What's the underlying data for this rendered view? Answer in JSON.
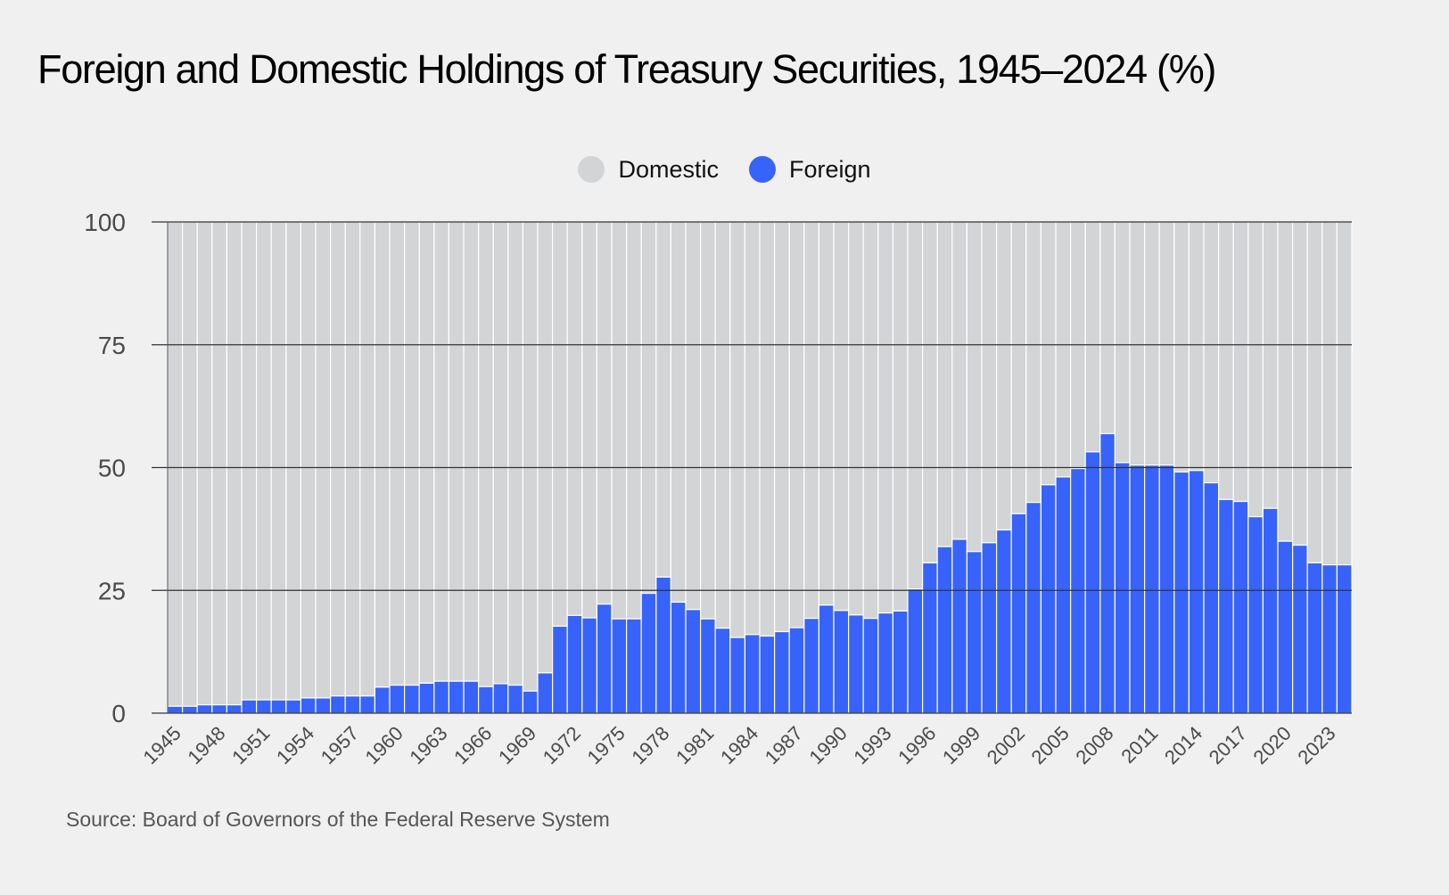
{
  "chart_data": {
    "type": "bar",
    "stacked": true,
    "title": "Foreign and Domestic Holdings of Treasury Securities, 1945–2024 (%)",
    "xlabel": "",
    "ylabel": "",
    "ylim": [
      0,
      100
    ],
    "yticks": [
      0,
      25,
      50,
      75,
      100
    ],
    "grid": true,
    "legend_position": "top-center",
    "categories": [
      1945,
      1946,
      1947,
      1948,
      1949,
      1950,
      1951,
      1952,
      1953,
      1954,
      1955,
      1956,
      1957,
      1958,
      1959,
      1960,
      1961,
      1962,
      1963,
      1964,
      1965,
      1966,
      1967,
      1968,
      1969,
      1970,
      1971,
      1972,
      1973,
      1974,
      1975,
      1976,
      1977,
      1978,
      1979,
      1980,
      1981,
      1982,
      1983,
      1984,
      1985,
      1986,
      1987,
      1988,
      1989,
      1990,
      1991,
      1992,
      1993,
      1994,
      1995,
      1996,
      1997,
      1998,
      1999,
      2000,
      2001,
      2002,
      2003,
      2004,
      2005,
      2006,
      2007,
      2008,
      2009,
      2010,
      2011,
      2012,
      2013,
      2014,
      2015,
      2016,
      2017,
      2018,
      2019,
      2020,
      2021,
      2022,
      2023,
      2024
    ],
    "tick_labels": [
      "1945",
      "1948",
      "1951",
      "1954",
      "1957",
      "1960",
      "1963",
      "1966",
      "1969",
      "1972",
      "1975",
      "1978",
      "1981",
      "1984",
      "1987",
      "1990",
      "1993",
      "1996",
      "1999",
      "2002",
      "2005",
      "2008",
      "2011",
      "2014",
      "2017",
      "2020",
      "2023"
    ],
    "series": [
      {
        "name": "Domestic",
        "color": "#d3d4d6",
        "values": [
          98.6,
          98.6,
          98.3,
          98.3,
          98.3,
          97.3,
          97.3,
          97.3,
          97.3,
          96.9,
          96.9,
          96.5,
          96.5,
          96.5,
          94.7,
          94.3,
          94.3,
          93.9,
          93.5,
          93.5,
          93.5,
          94.6,
          94.0,
          94.3,
          95.5,
          91.8,
          82.3,
          80.1,
          80.6,
          77.8,
          80.8,
          80.8,
          75.6,
          72.3,
          77.4,
          78.9,
          80.8,
          82.7,
          84.6,
          84.0,
          84.3,
          83.4,
          82.6,
          80.7,
          78.0,
          79.1,
          80.0,
          80.7,
          79.6,
          79.2,
          74.7,
          69.4,
          66.1,
          64.6,
          67.1,
          65.3,
          62.7,
          59.4,
          57.1,
          53.5,
          51.9,
          50.2,
          46.8,
          43.1,
          49.0,
          49.5,
          49.5,
          49.5,
          50.9,
          50.6,
          53.1,
          56.5,
          56.9,
          60.0,
          58.3,
          65.0,
          65.8,
          69.4,
          69.8,
          69.8
        ]
      },
      {
        "name": "Foreign",
        "color": "#3863fa",
        "values": [
          1.4,
          1.4,
          1.7,
          1.7,
          1.7,
          2.7,
          2.7,
          2.7,
          2.7,
          3.1,
          3.1,
          3.5,
          3.5,
          3.5,
          5.3,
          5.7,
          5.7,
          6.1,
          6.5,
          6.5,
          6.5,
          5.4,
          6.0,
          5.7,
          4.5,
          8.2,
          17.7,
          19.9,
          19.4,
          22.2,
          19.2,
          19.2,
          24.4,
          27.7,
          22.6,
          21.1,
          19.2,
          17.3,
          15.4,
          16.0,
          15.7,
          16.6,
          17.4,
          19.3,
          22.0,
          20.9,
          20.0,
          19.3,
          20.4,
          20.8,
          25.3,
          30.6,
          33.9,
          35.4,
          32.9,
          34.7,
          37.3,
          40.6,
          42.9,
          46.5,
          48.1,
          49.8,
          53.2,
          56.9,
          51.0,
          50.5,
          50.5,
          50.5,
          49.1,
          49.4,
          46.9,
          43.5,
          43.1,
          40.0,
          41.7,
          35.0,
          34.2,
          30.6,
          30.2,
          30.2
        ]
      }
    ]
  },
  "legend": {
    "items": [
      {
        "label": "Domestic",
        "color": "#d3d4d6"
      },
      {
        "label": "Foreign",
        "color": "#3863fa"
      }
    ]
  },
  "source": "Source: Board of Governors of the Federal Reserve System",
  "colors": {
    "background": "#f0f0f0",
    "domestic": "#d3d4d6",
    "foreign": "#3863fa",
    "gridline": "#333333",
    "axis_text": "#4a4a4a"
  }
}
